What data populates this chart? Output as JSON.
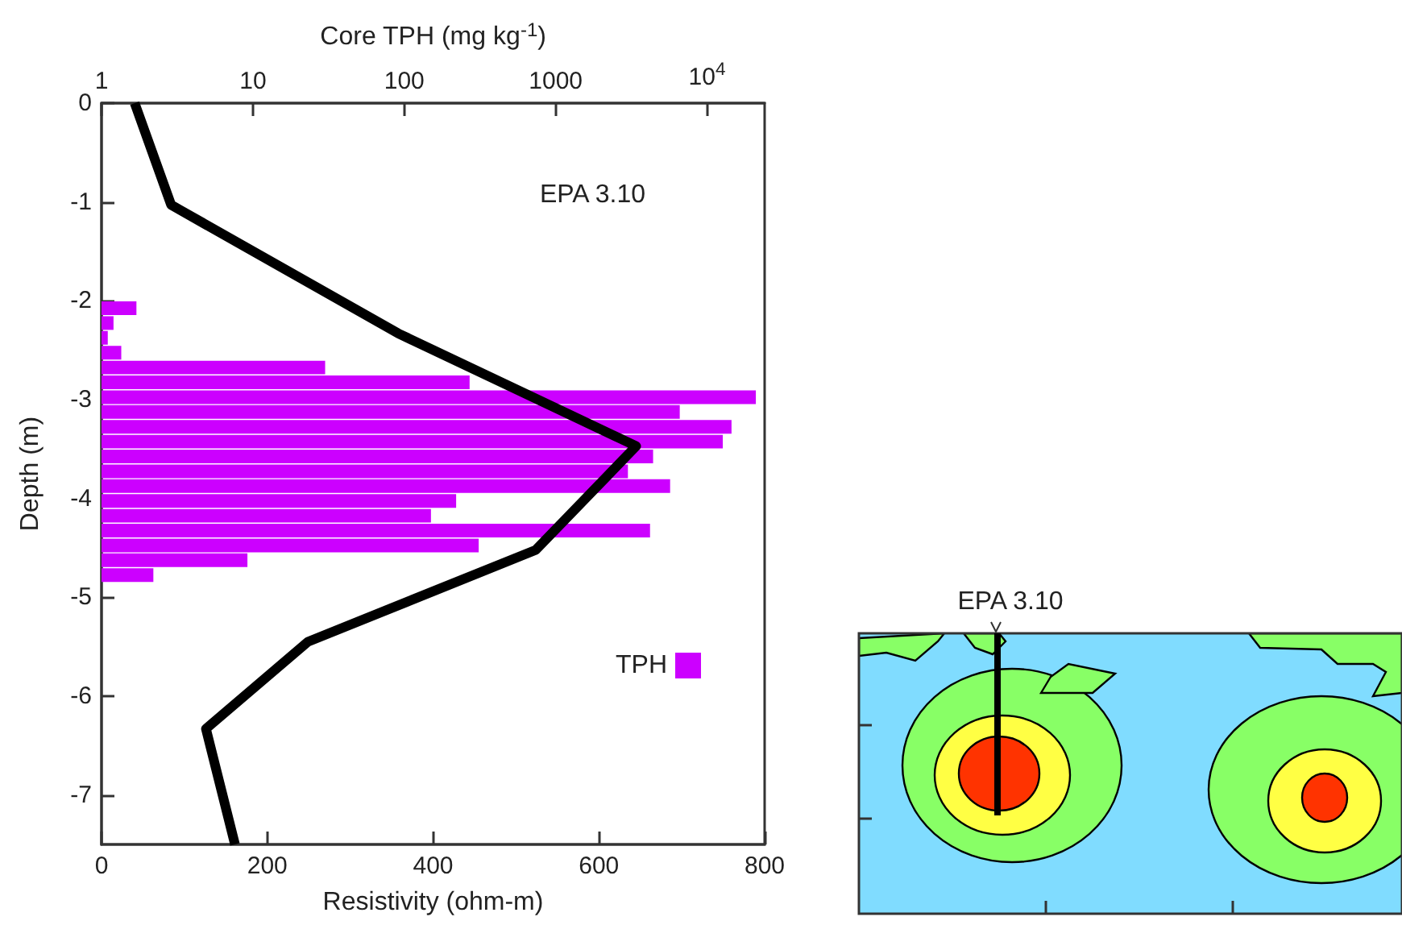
{
  "chart_data": {
    "type": "bar",
    "orientation": "horizontal",
    "xlabel": "Resistivity (ohm-m)",
    "x2label": "Core TPH (mg kg$^{-1}$)",
    "ylabel": "Depth (m)",
    "xlim": [
      0,
      800
    ],
    "xticks": [
      0,
      200,
      400,
      600,
      800
    ],
    "x2lim": [
      1,
      24000
    ],
    "x2ticks": [
      1,
      10,
      100,
      1000,
      {
        "value": 10000,
        "label": "10$^{4}$"
      }
    ],
    "ylim": [
      -7.5,
      0
    ],
    "yticks": [
      0,
      -1,
      -2,
      -3,
      -4,
      -5,
      -6,
      -7
    ],
    "log": "x2",
    "grid": false,
    "legend": "bottom right",
    "series": [
      {
        "name": "TPH",
        "color": "#cc00ff",
        "axis": "x2",
        "x": [
          -2.075,
          -2.225,
          -2.375,
          -2.525,
          -2.675,
          -2.825,
          -2.975,
          -3.125,
          -3.275,
          -3.425,
          -3.575,
          -3.725,
          -3.875,
          -4.025,
          -4.175,
          -4.325,
          -4.475,
          -4.625,
          -4.775
        ],
        "values": [
          1.7,
          1.2,
          1.1,
          1.35,
          30,
          270,
          21000,
          6600,
          14500,
          12700,
          4400,
          3000,
          5700,
          220,
          150,
          4200,
          310,
          9.2,
          2.2
        ]
      },
      {
        "type": "line",
        "color": "#000000",
        "marker": "none",
        "line_style": "solid",
        "x": [
          0,
          -1.03,
          -2.33,
          -3.47,
          -4.52,
          -5.45,
          -6.33,
          -7.5
        ],
        "values": [
          40,
          84,
          358,
          645,
          524,
          249,
          126,
          161
        ]
      }
    ],
    "annotations": [
      "EPA 3.10",
      "EPA 3.10"
    ]
  }
}
